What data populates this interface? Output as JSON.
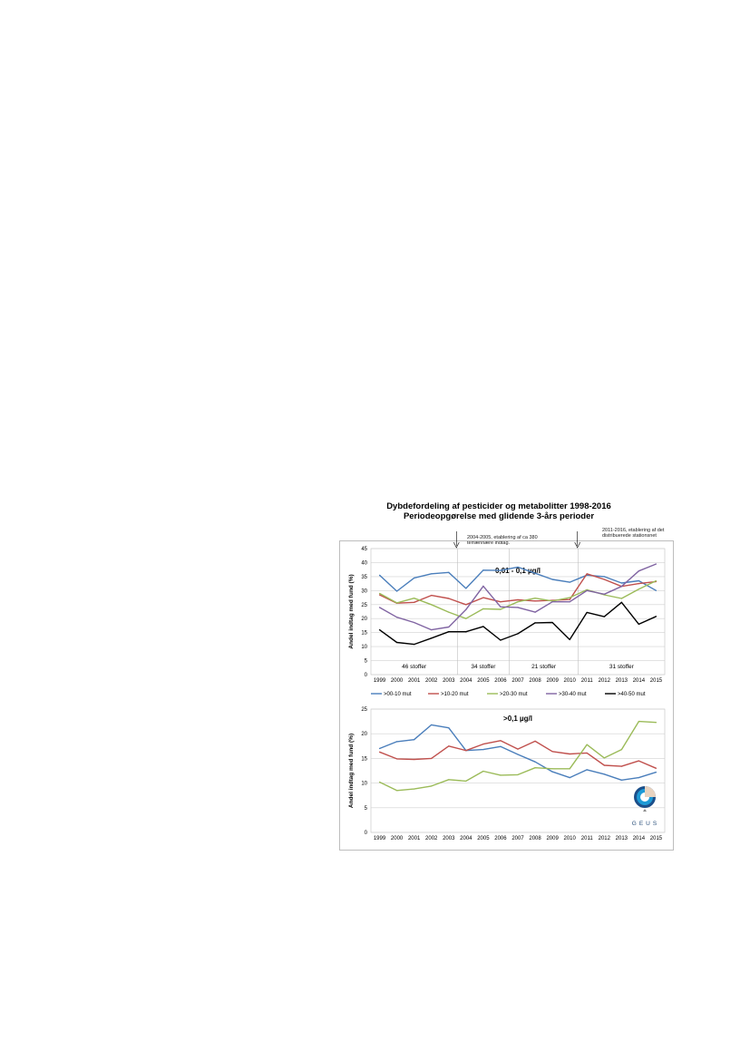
{
  "figure": {
    "title_line1": "Dybdefordeling af pesticider og metabolitter 1998-2016",
    "title_line2": "Periodeopgørelse med glidende 3-års perioder",
    "annotation1": "2004-2005, etablering af ca 380 terrænnære indtag.",
    "annotation2": "2011-2016, etablering af det distribuerede stationsnet"
  },
  "chart_data": [
    {
      "type": "line",
      "title": "0,01 - 0,1 µg/l",
      "ylabel": "Andel indtag med fund (%)",
      "xlabel": "",
      "x": [
        "1999",
        "2000",
        "2001",
        "2002",
        "2003",
        "2004",
        "2005",
        "2006",
        "2007",
        "2008",
        "2009",
        "2010",
        "2011",
        "2012",
        "2013",
        "2014",
        "2015"
      ],
      "ylim": [
        0,
        45
      ],
      "yticks": [
        0,
        5,
        10,
        15,
        20,
        25,
        30,
        35,
        40,
        45
      ],
      "grid": true,
      "legend": "bottom",
      "period_labels": [
        "46 stoffer",
        "34 stoffer",
        "21 stoffer",
        "31 stoffer"
      ],
      "series": [
        {
          "name": ">00-10 mut",
          "color": "#4a7ebb",
          "values": [
            35.5,
            29.8,
            34.5,
            36,
            36.5,
            30.8,
            37.3,
            37.2,
            38.4,
            36.2,
            34,
            33,
            35.5,
            35,
            32.7,
            33.5,
            30
          ]
        },
        {
          "name": ">10-20 mut",
          "color": "#c0504d",
          "values": [
            28.5,
            25.5,
            25.8,
            28.3,
            27.2,
            25,
            27.5,
            26,
            26.7,
            26.3,
            26.5,
            26.8,
            36,
            34,
            31.5,
            32.5,
            33.2
          ]
        },
        {
          "name": ">20-30 mut",
          "color": "#9bbb59",
          "values": [
            29,
            25.6,
            27.3,
            25,
            22.3,
            20,
            23.5,
            23.3,
            26,
            27.3,
            26.3,
            27.5,
            30.3,
            28.5,
            27.2,
            30.5,
            33.5
          ]
        },
        {
          "name": ">30-40 mut",
          "color": "#8064a2",
          "values": [
            24,
            20.5,
            18.6,
            16,
            17,
            23.2,
            31.6,
            24.2,
            24,
            22.3,
            26,
            26,
            30,
            28.7,
            31.5,
            37,
            39.5
          ]
        },
        {
          "name": ">40-50 mut",
          "color": "#000000",
          "values": [
            16,
            11.5,
            10.8,
            13,
            15.3,
            15.3,
            17.2,
            12.3,
            14.6,
            18.5,
            18.6,
            12.5,
            22.2,
            20.7,
            25.8,
            18,
            20.8
          ]
        }
      ]
    },
    {
      "type": "line",
      "title": ">0,1 µg/l",
      "ylabel": "Andel indtag med fund (%)",
      "xlabel": "",
      "x": [
        "1999",
        "2000",
        "2001",
        "2002",
        "2003",
        "2004",
        "2005",
        "2006",
        "2007",
        "2008",
        "2009",
        "2010",
        "2011",
        "2012",
        "2013",
        "2014",
        "2015"
      ],
      "ylim": [
        0,
        25
      ],
      "yticks": [
        0,
        5,
        10,
        15,
        20,
        25
      ],
      "grid": true,
      "series": [
        {
          "color": "#4a7ebb",
          "values": [
            17,
            18.4,
            18.8,
            21.8,
            21.2,
            16.6,
            16.8,
            17.4,
            15.8,
            14.3,
            12.3,
            11.1,
            12.7,
            11.8,
            10.6,
            11.1,
            12.2
          ]
        },
        {
          "color": "#c0504d",
          "values": [
            16.3,
            14.9,
            14.8,
            15,
            17.5,
            16.6,
            17.9,
            18.6,
            16.9,
            18.5,
            16.4,
            15.9,
            16.1,
            13.6,
            13.4,
            14.5,
            13
          ]
        },
        {
          "color": "#9bbb59",
          "values": [
            10.2,
            8.5,
            8.8,
            9.4,
            10.7,
            10.4,
            12.4,
            11.6,
            11.7,
            13.1,
            12.9,
            12.9,
            17.8,
            15.1,
            16.8,
            22.5,
            22.3
          ]
        }
      ]
    }
  ],
  "logo": {
    "text": "GEUS"
  }
}
